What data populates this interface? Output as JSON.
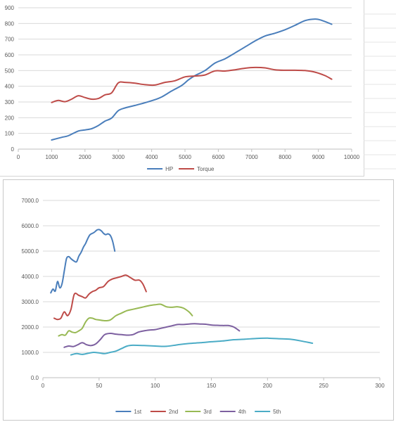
{
  "chart_data": [
    {
      "type": "line",
      "title": "",
      "xlabel": "",
      "ylabel": "",
      "xlim": [
        0,
        10000
      ],
      "ylim": [
        0,
        900
      ],
      "x_ticks": [
        0,
        1000,
        2000,
        3000,
        4000,
        5000,
        6000,
        7000,
        8000,
        9000,
        10000
      ],
      "y_ticks": [
        0,
        100,
        200,
        300,
        400,
        500,
        600,
        700,
        800,
        900
      ],
      "grid": true,
      "legend": "bottom",
      "series": [
        {
          "name": "HP",
          "color": "#4a7ebb",
          "points": [
            [
              1000,
              58
            ],
            [
              1300,
              75
            ],
            [
              1500,
              85
            ],
            [
              1800,
              115
            ],
            [
              2000,
              122
            ],
            [
              2200,
              130
            ],
            [
              2400,
              150
            ],
            [
              2600,
              178
            ],
            [
              2800,
              198
            ],
            [
              3000,
              245
            ],
            [
              3200,
              262
            ],
            [
              3500,
              278
            ],
            [
              3800,
              295
            ],
            [
              4100,
              315
            ],
            [
              4300,
              332
            ],
            [
              4600,
              370
            ],
            [
              4900,
              405
            ],
            [
              5100,
              440
            ],
            [
              5300,
              468
            ],
            [
              5600,
              500
            ],
            [
              5900,
              548
            ],
            [
              6200,
              575
            ],
            [
              6500,
              612
            ],
            [
              6800,
              650
            ],
            [
              7100,
              688
            ],
            [
              7400,
              720
            ],
            [
              7700,
              738
            ],
            [
              8000,
              760
            ],
            [
              8300,
              788
            ],
            [
              8600,
              818
            ],
            [
              8900,
              828
            ],
            [
              9100,
              820
            ],
            [
              9400,
              795
            ]
          ]
        },
        {
          "name": "Torque",
          "color": "#be4b48",
          "points": [
            [
              1000,
              297
            ],
            [
              1200,
              310
            ],
            [
              1400,
              302
            ],
            [
              1600,
              318
            ],
            [
              1800,
              340
            ],
            [
              2000,
              328
            ],
            [
              2200,
              318
            ],
            [
              2400,
              322
            ],
            [
              2600,
              345
            ],
            [
              2800,
              358
            ],
            [
              3000,
              422
            ],
            [
              3200,
              425
            ],
            [
              3500,
              420
            ],
            [
              3800,
              410
            ],
            [
              4100,
              408
            ],
            [
              4400,
              425
            ],
            [
              4700,
              435
            ],
            [
              5000,
              460
            ],
            [
              5300,
              465
            ],
            [
              5600,
              472
            ],
            [
              5900,
              498
            ],
            [
              6200,
              497
            ],
            [
              6500,
              505
            ],
            [
              6800,
              515
            ],
            [
              7100,
              520
            ],
            [
              7400,
              517
            ],
            [
              7700,
              505
            ],
            [
              8000,
              502
            ],
            [
              8300,
              502
            ],
            [
              8600,
              500
            ],
            [
              8900,
              490
            ],
            [
              9200,
              468
            ],
            [
              9400,
              445
            ]
          ]
        }
      ]
    },
    {
      "type": "line",
      "title": "",
      "xlabel": "",
      "ylabel": "",
      "xlim": [
        0,
        300
      ],
      "ylim": [
        0,
        7000
      ],
      "x_ticks": [
        0,
        50,
        100,
        150,
        200,
        250,
        300
      ],
      "y_ticks": [
        "0.0",
        "1000.0",
        "2000.0",
        "3000.0",
        "4000.0",
        "5000.0",
        "6000.0",
        "7000.0"
      ],
      "y_tick_values": [
        0,
        1000,
        2000,
        3000,
        4000,
        5000,
        6000,
        7000
      ],
      "grid": true,
      "legend": "bottom",
      "series": [
        {
          "name": "1st",
          "color": "#4a7ebb",
          "points": [
            [
              7,
              3350
            ],
            [
              9,
              3500
            ],
            [
              11,
              3420
            ],
            [
              13,
              3800
            ],
            [
              15,
              3550
            ],
            [
              17,
              3700
            ],
            [
              19,
              4200
            ],
            [
              21,
              4700
            ],
            [
              23,
              4780
            ],
            [
              25,
              4700
            ],
            [
              28,
              4600
            ],
            [
              30,
              4580
            ],
            [
              32,
              4800
            ],
            [
              34,
              4950
            ],
            [
              36,
              5150
            ],
            [
              38,
              5300
            ],
            [
              40,
              5500
            ],
            [
              42,
              5650
            ],
            [
              44,
              5700
            ],
            [
              46,
              5750
            ],
            [
              48,
              5830
            ],
            [
              50,
              5850
            ],
            [
              52,
              5800
            ],
            [
              54,
              5700
            ],
            [
              56,
              5650
            ],
            [
              58,
              5680
            ],
            [
              60,
              5620
            ],
            [
              62,
              5400
            ],
            [
              64,
              5000
            ]
          ]
        },
        {
          "name": "2nd",
          "color": "#be4b48",
          "points": [
            [
              10,
              2350
            ],
            [
              13,
              2300
            ],
            [
              16,
              2350
            ],
            [
              19,
              2600
            ],
            [
              22,
              2450
            ],
            [
              25,
              2700
            ],
            [
              28,
              3300
            ],
            [
              32,
              3250
            ],
            [
              35,
              3200
            ],
            [
              38,
              3150
            ],
            [
              41,
              3300
            ],
            [
              44,
              3400
            ],
            [
              47,
              3450
            ],
            [
              50,
              3550
            ],
            [
              54,
              3600
            ],
            [
              58,
              3800
            ],
            [
              62,
              3900
            ],
            [
              66,
              3950
            ],
            [
              70,
              4000
            ],
            [
              74,
              4050
            ],
            [
              78,
              3950
            ],
            [
              82,
              3850
            ],
            [
              86,
              3850
            ],
            [
              89,
              3700
            ],
            [
              92,
              3400
            ]
          ]
        },
        {
          "name": "3rd",
          "color": "#98b954",
          "points": [
            [
              14,
              1650
            ],
            [
              17,
              1700
            ],
            [
              20,
              1680
            ],
            [
              23,
              1850
            ],
            [
              26,
              1800
            ],
            [
              29,
              1780
            ],
            [
              32,
              1850
            ],
            [
              35,
              1950
            ],
            [
              38,
              2200
            ],
            [
              41,
              2350
            ],
            [
              44,
              2350
            ],
            [
              47,
              2300
            ],
            [
              50,
              2280
            ],
            [
              55,
              2250
            ],
            [
              60,
              2280
            ],
            [
              65,
              2450
            ],
            [
              70,
              2550
            ],
            [
              75,
              2650
            ],
            [
              80,
              2700
            ],
            [
              85,
              2750
            ],
            [
              90,
              2800
            ],
            [
              95,
              2850
            ],
            [
              100,
              2880
            ],
            [
              105,
              2900
            ],
            [
              110,
              2800
            ],
            [
              115,
              2780
            ],
            [
              120,
              2800
            ],
            [
              125,
              2750
            ],
            [
              130,
              2600
            ],
            [
              133,
              2450
            ]
          ]
        },
        {
          "name": "4th",
          "color": "#7d60a0",
          "points": [
            [
              19,
              1200
            ],
            [
              23,
              1250
            ],
            [
              27,
              1230
            ],
            [
              31,
              1300
            ],
            [
              35,
              1380
            ],
            [
              39,
              1300
            ],
            [
              43,
              1270
            ],
            [
              47,
              1330
            ],
            [
              51,
              1500
            ],
            [
              55,
              1700
            ],
            [
              60,
              1750
            ],
            [
              65,
              1720
            ],
            [
              70,
              1700
            ],
            [
              75,
              1680
            ],
            [
              80,
              1700
            ],
            [
              85,
              1800
            ],
            [
              90,
              1850
            ],
            [
              95,
              1880
            ],
            [
              100,
              1900
            ],
            [
              105,
              1950
            ],
            [
              110,
              2000
            ],
            [
              115,
              2050
            ],
            [
              120,
              2100
            ],
            [
              125,
              2100
            ],
            [
              130,
              2120
            ],
            [
              135,
              2130
            ],
            [
              140,
              2120
            ],
            [
              145,
              2110
            ],
            [
              150,
              2080
            ],
            [
              155,
              2070
            ],
            [
              160,
              2060
            ],
            [
              165,
              2060
            ],
            [
              170,
              2000
            ],
            [
              175,
              1850
            ]
          ]
        },
        {
          "name": "5th",
          "color": "#4bacc6",
          "points": [
            [
              25,
              900
            ],
            [
              30,
              950
            ],
            [
              35,
              920
            ],
            [
              40,
              960
            ],
            [
              45,
              1000
            ],
            [
              50,
              980
            ],
            [
              55,
              950
            ],
            [
              60,
              1000
            ],
            [
              65,
              1050
            ],
            [
              70,
              1150
            ],
            [
              75,
              1250
            ],
            [
              80,
              1280
            ],
            [
              90,
              1270
            ],
            [
              100,
              1250
            ],
            [
              110,
              1240
            ],
            [
              120,
              1300
            ],
            [
              130,
              1350
            ],
            [
              140,
              1380
            ],
            [
              150,
              1420
            ],
            [
              160,
              1450
            ],
            [
              170,
              1500
            ],
            [
              180,
              1520
            ],
            [
              190,
              1550
            ],
            [
              200,
              1560
            ],
            [
              210,
              1540
            ],
            [
              220,
              1520
            ],
            [
              230,
              1450
            ],
            [
              240,
              1360
            ]
          ]
        }
      ]
    }
  ]
}
